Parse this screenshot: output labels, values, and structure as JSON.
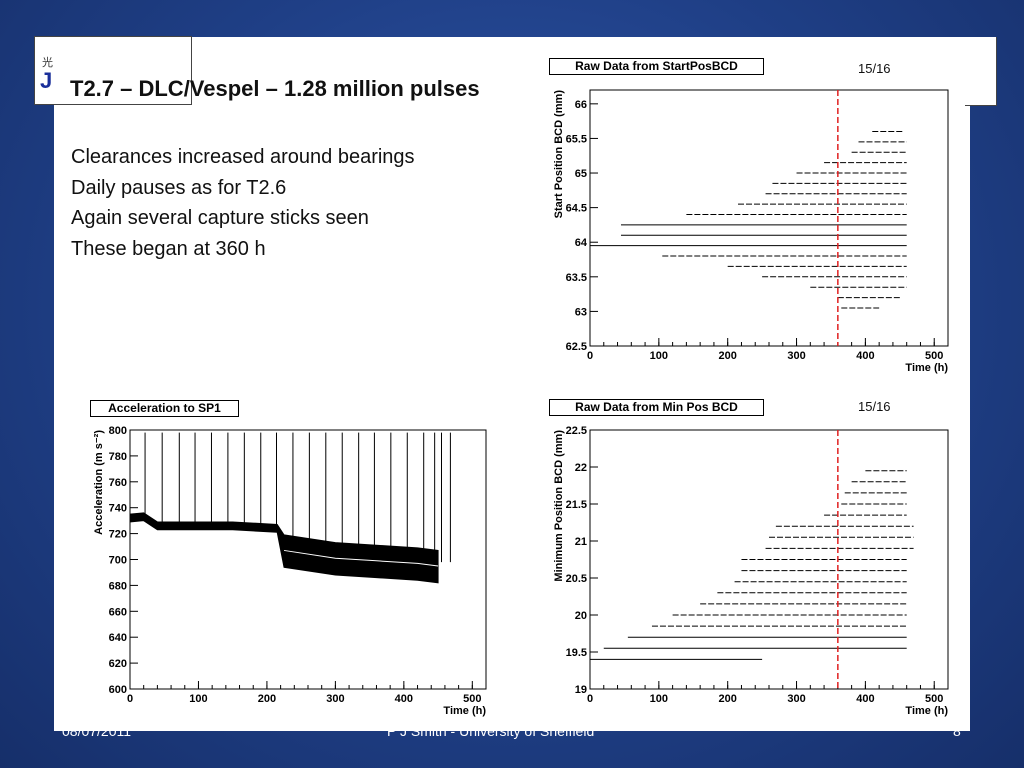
{
  "slide": {
    "title": "T2.7 – DLC/Vespel – 1.28 million pulses",
    "bullets": [
      "Clearances increased around bearings",
      "Daily pauses as for T2.6",
      "Again several capture sticks seen",
      "These began at 360 h"
    ],
    "page_note_top": "15/16",
    "page_note_bottom": "15/16",
    "footer": {
      "date": "08/07/2011",
      "center": "P J Smith - University of Sheffield",
      "page": "8"
    },
    "colors": {
      "background": "#1f3f86",
      "marker": "#e02020",
      "data": "#000000"
    }
  },
  "chart_data": [
    {
      "id": "startpos",
      "type": "scatter",
      "title": "Raw Data from StartPosBCD",
      "xlabel": "Time (h)",
      "ylabel": "Start Position BCD (mm)",
      "xlim": [
        0,
        520
      ],
      "ylim": [
        62.5,
        66.2
      ],
      "xticks": [
        0,
        100,
        200,
        300,
        400,
        500
      ],
      "yticks": [
        62.5,
        63,
        63.5,
        64,
        64.5,
        65,
        65.5,
        66
      ],
      "marker_x": 360,
      "levels": [
        {
          "y": 65.6,
          "x0": 410,
          "x1": 455
        },
        {
          "y": 65.45,
          "x0": 390,
          "x1": 460
        },
        {
          "y": 65.3,
          "x0": 380,
          "x1": 460
        },
        {
          "y": 65.15,
          "x0": 340,
          "x1": 460
        },
        {
          "y": 65.0,
          "x0": 300,
          "x1": 460
        },
        {
          "y": 64.85,
          "x0": 265,
          "x1": 460
        },
        {
          "y": 64.7,
          "x0": 255,
          "x1": 460
        },
        {
          "y": 64.55,
          "x0": 215,
          "x1": 460
        },
        {
          "y": 64.4,
          "x0": 140,
          "x1": 460
        },
        {
          "y": 64.25,
          "x0": 45,
          "x1": 460
        },
        {
          "y": 64.1,
          "x0": 45,
          "x1": 460
        },
        {
          "y": 63.95,
          "x0": 0,
          "x1": 460
        },
        {
          "y": 63.8,
          "x0": 105,
          "x1": 460
        },
        {
          "y": 63.65,
          "x0": 200,
          "x1": 460
        },
        {
          "y": 63.5,
          "x0": 250,
          "x1": 460
        },
        {
          "y": 63.35,
          "x0": 320,
          "x1": 460
        },
        {
          "y": 63.2,
          "x0": 360,
          "x1": 450
        },
        {
          "y": 63.05,
          "x0": 365,
          "x1": 420
        }
      ]
    },
    {
      "id": "accel",
      "type": "line",
      "title": "Acceleration to SP1",
      "xlabel": "Time (h)",
      "ylabel": "Acceleration (m s⁻²)",
      "xlim": [
        0,
        520
      ],
      "ylim": [
        600,
        800
      ],
      "xticks": [
        0,
        100,
        200,
        300,
        400,
        500
      ],
      "yticks": [
        600,
        620,
        640,
        660,
        680,
        700,
        720,
        740,
        760,
        780,
        800
      ],
      "baseline": [
        {
          "x": 0,
          "y": 732
        },
        {
          "x": 20,
          "y": 733
        },
        {
          "x": 40,
          "y": 726
        },
        {
          "x": 100,
          "y": 726
        },
        {
          "x": 150,
          "y": 726
        },
        {
          "x": 215,
          "y": 724
        },
        {
          "x": 225,
          "y": 710
        },
        {
          "x": 300,
          "y": 704
        },
        {
          "x": 360,
          "y": 702
        },
        {
          "x": 420,
          "y": 700
        },
        {
          "x": 450,
          "y": 698
        }
      ],
      "spike_times": [
        22,
        47,
        72,
        95,
        119,
        143,
        167,
        191,
        214,
        238,
        262,
        286,
        310,
        334,
        357,
        381,
        405,
        429,
        445,
        455,
        468
      ],
      "spike_peak": 798
    },
    {
      "id": "minpos",
      "type": "scatter",
      "title": "Raw Data from Min Pos BCD",
      "xlabel": "Time (h)",
      "ylabel": "Minimum Position BCD (mm)",
      "xlim": [
        0,
        520
      ],
      "ylim": [
        19,
        22.5
      ],
      "xticks": [
        0,
        100,
        200,
        300,
        400,
        500
      ],
      "yticks": [
        19,
        19.5,
        20,
        20.5,
        21,
        21.5,
        22,
        22.5
      ],
      "marker_x": 360,
      "levels": [
        {
          "y": 21.95,
          "x0": 400,
          "x1": 460
        },
        {
          "y": 21.8,
          "x0": 380,
          "x1": 460
        },
        {
          "y": 21.65,
          "x0": 370,
          "x1": 460
        },
        {
          "y": 21.5,
          "x0": 365,
          "x1": 460
        },
        {
          "y": 21.35,
          "x0": 340,
          "x1": 460
        },
        {
          "y": 21.2,
          "x0": 270,
          "x1": 470
        },
        {
          "y": 21.05,
          "x0": 260,
          "x1": 470
        },
        {
          "y": 20.9,
          "x0": 255,
          "x1": 470
        },
        {
          "y": 20.75,
          "x0": 220,
          "x1": 460
        },
        {
          "y": 20.6,
          "x0": 220,
          "x1": 460
        },
        {
          "y": 20.45,
          "x0": 210,
          "x1": 460
        },
        {
          "y": 20.3,
          "x0": 185,
          "x1": 460
        },
        {
          "y": 20.15,
          "x0": 160,
          "x1": 460
        },
        {
          "y": 20.0,
          "x0": 120,
          "x1": 460
        },
        {
          "y": 19.85,
          "x0": 90,
          "x1": 460
        },
        {
          "y": 19.7,
          "x0": 55,
          "x1": 460
        },
        {
          "y": 19.55,
          "x0": 20,
          "x1": 460
        },
        {
          "y": 19.4,
          "x0": 0,
          "x1": 250
        }
      ]
    }
  ]
}
